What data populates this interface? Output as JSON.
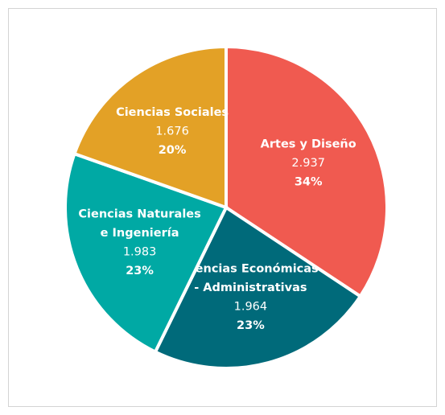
{
  "chart_data": {
    "type": "pie",
    "categories": [
      [
        "Artes y Diseño"
      ],
      [
        "Ciencias Económicas",
        "- Administrativas"
      ],
      [
        "Ciencias Naturales",
        "e Ingeniería"
      ],
      [
        "Ciencias Sociales"
      ]
    ],
    "values": [
      2937,
      1964,
      1983,
      1676
    ],
    "value_labels": [
      "2.937",
      "1.964",
      "1.983",
      "1.676"
    ],
    "percentages": [
      34,
      23,
      23,
      20
    ],
    "percentage_labels": [
      "34%",
      "23%",
      "23%",
      "20%"
    ],
    "colors": [
      "#f05a50",
      "#006a7a",
      "#00a9a4",
      "#e3a126"
    ]
  }
}
